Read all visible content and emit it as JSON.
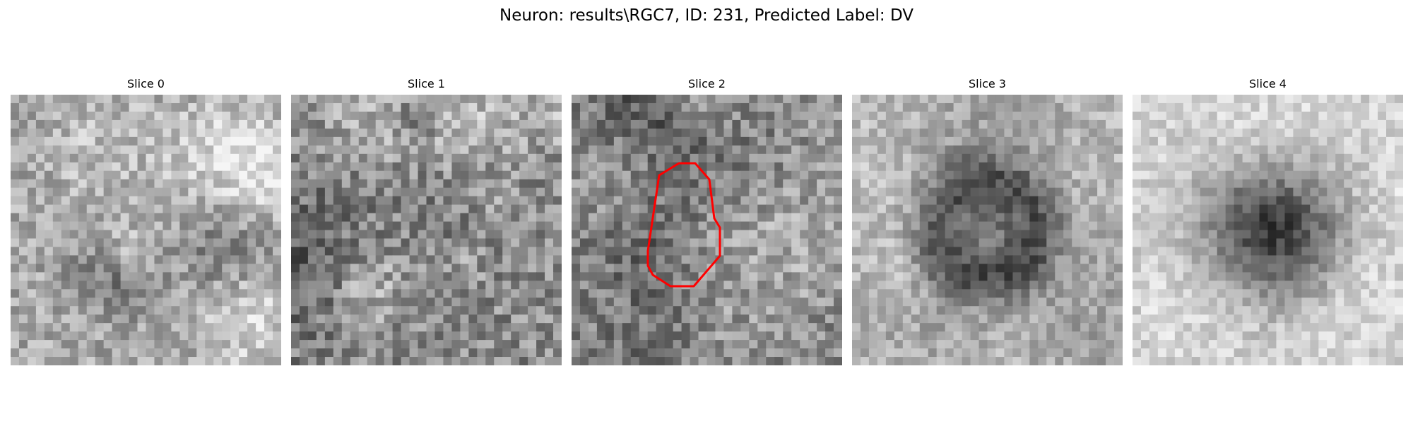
{
  "figure": {
    "title": "Neuron: results\\RGC7, ID: 231, Predicted Label: DV"
  },
  "slices": [
    {
      "title": "Slice 0",
      "pattern": "blotchy-bright",
      "roi": false
    },
    {
      "title": "Slice 1",
      "pattern": "noisy-mixed",
      "roi": false
    },
    {
      "title": "Slice 2",
      "pattern": "mid-grey-speckle",
      "roi": true
    },
    {
      "title": "Slice 3",
      "pattern": "dark-ring",
      "roi": false
    },
    {
      "title": "Slice 4",
      "pattern": "dark-blob",
      "roi": false
    }
  ],
  "colors": {
    "roi_outline": "#ff0000",
    "background": "#ffffff"
  },
  "colormap": "gray"
}
